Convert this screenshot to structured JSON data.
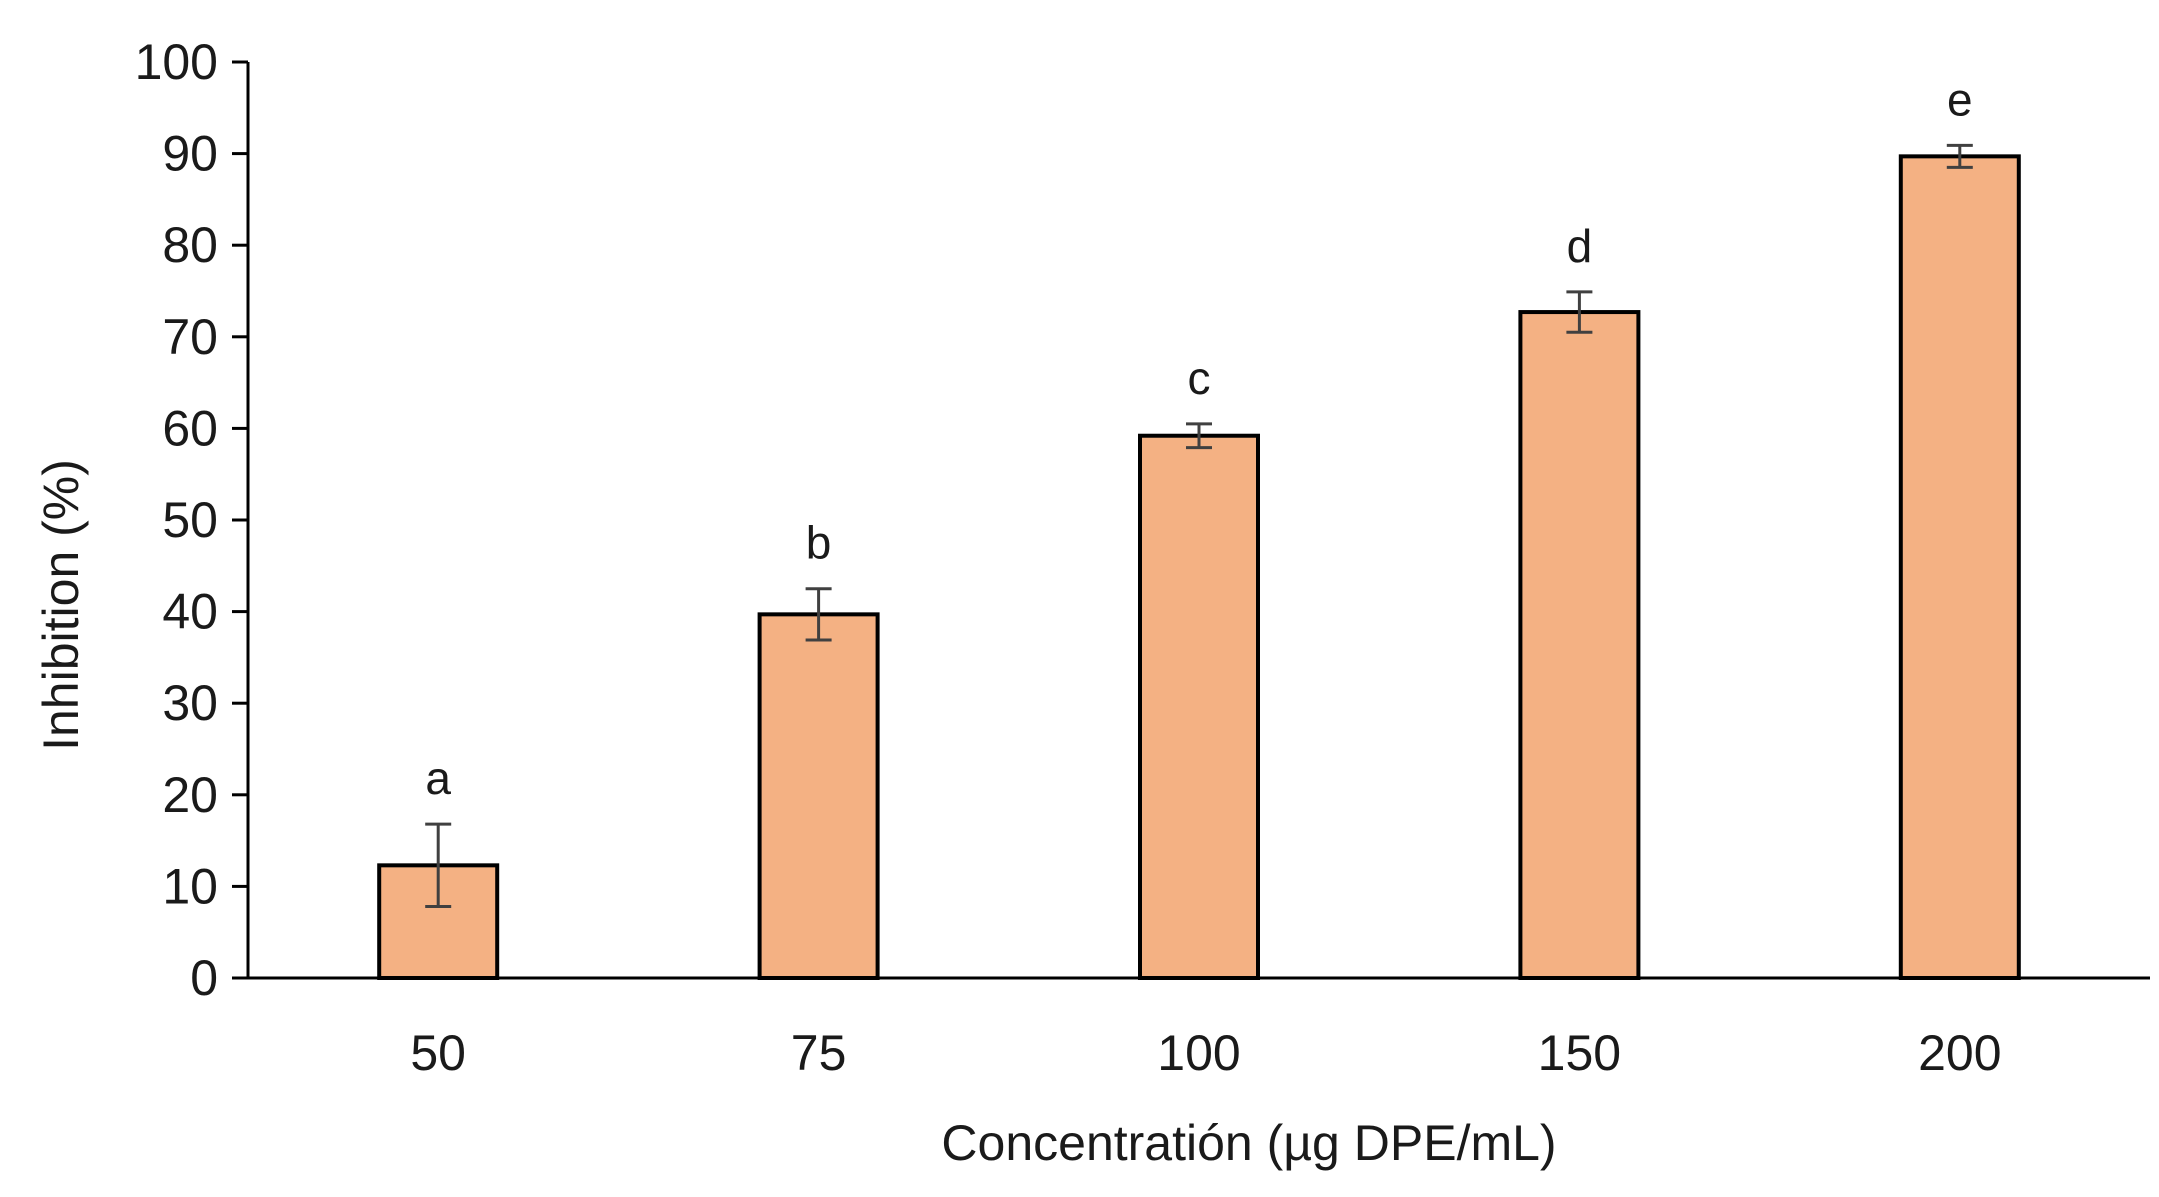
{
  "chart_data": {
    "type": "bar",
    "categories": [
      "50",
      "75",
      "100",
      "150",
      "200"
    ],
    "values": [
      12.3,
      39.7,
      59.2,
      72.7,
      89.7
    ],
    "errors": [
      4.5,
      2.8,
      1.3,
      2.2,
      1.2
    ],
    "significance_letters": [
      "a",
      "b",
      "c",
      "d",
      "e"
    ],
    "xlabel": "Concentratión (µg DPE/mL)",
    "ylabel": "Inhibition (%)",
    "ylim": [
      0,
      100
    ],
    "yticks": [
      0,
      10,
      20,
      30,
      40,
      50,
      60,
      70,
      80,
      90,
      100
    ],
    "grid": false,
    "legend": "none",
    "bar_color": "#F4B183",
    "bar_edge_color": "#000000",
    "error_bar_color": "#404040"
  }
}
